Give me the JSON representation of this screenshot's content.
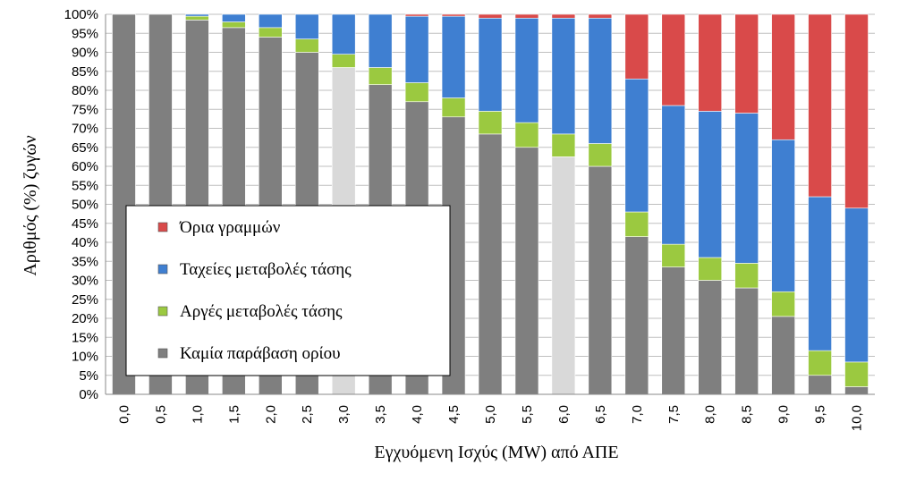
{
  "chart_data": {
    "type": "bar",
    "stacked": true,
    "percent": true,
    "xlabel": "Εγχυόμενη Ισχύς (MW) από ΑΠΕ",
    "ylabel": "Αριθμός (%) ζυγών",
    "ylim": [
      0,
      100
    ],
    "yticks": [
      "0%",
      "5%",
      "10%",
      "15%",
      "20%",
      "25%",
      "30%",
      "35%",
      "40%",
      "45%",
      "50%",
      "55%",
      "60%",
      "65%",
      "70%",
      "75%",
      "80%",
      "85%",
      "90%",
      "95%",
      "100%"
    ],
    "grid": true,
    "legend_position": "left",
    "categories": [
      "0,0",
      "0,5",
      "1,0",
      "1,5",
      "2,0",
      "2,5",
      "3,0",
      "3,5",
      "4,0",
      "4,5",
      "5,0",
      "5,5",
      "6,0",
      "6,5",
      "7,0",
      "7,5",
      "8,0",
      "8,5",
      "9,0",
      "9,5",
      "10,0"
    ],
    "highlighted_categories": [
      "3,0",
      "6,0"
    ],
    "series": [
      {
        "name": "Καμία παράβαση ορίου",
        "color": "#7f7f7f",
        "highlight_color": "#d9d9d9",
        "values": [
          100,
          100,
          98.5,
          96.5,
          94,
          90,
          86,
          81.5,
          77,
          73,
          68.5,
          65,
          62.5,
          60,
          41.5,
          33.5,
          30,
          28,
          20.5,
          5,
          2
        ]
      },
      {
        "name": "Αργές μεταβολές τάσης",
        "color": "#9bc940",
        "values": [
          0,
          0,
          1,
          1.5,
          2.5,
          3.5,
          3.5,
          4.5,
          5,
          5,
          6,
          6.5,
          6,
          6,
          6.5,
          6,
          6,
          6.5,
          6.5,
          6.5,
          6.5
        ]
      },
      {
        "name": "Ταχείες μεταβολές τάσης",
        "color": "#3f7fd1",
        "values": [
          0,
          0,
          0.5,
          2,
          3.5,
          6.5,
          10.5,
          14,
          17.5,
          21.5,
          24.5,
          27.5,
          30.5,
          33,
          35,
          36.5,
          38.5,
          39.5,
          40,
          40.5,
          40.5
        ]
      },
      {
        "name": "Όρια γραμμών",
        "color": "#d94a4a",
        "values": [
          0,
          0,
          0,
          0,
          0,
          0,
          0,
          0,
          0.5,
          0.5,
          1,
          1,
          1,
          1,
          17,
          24,
          25.5,
          26,
          33,
          48,
          51
        ]
      }
    ],
    "legend_order": [
      "Όρια γραμμών",
      "Ταχείες μεταβολές τάσης",
      "Αργές μεταβολές τάσης",
      "Καμία παράβαση ορίου"
    ]
  }
}
